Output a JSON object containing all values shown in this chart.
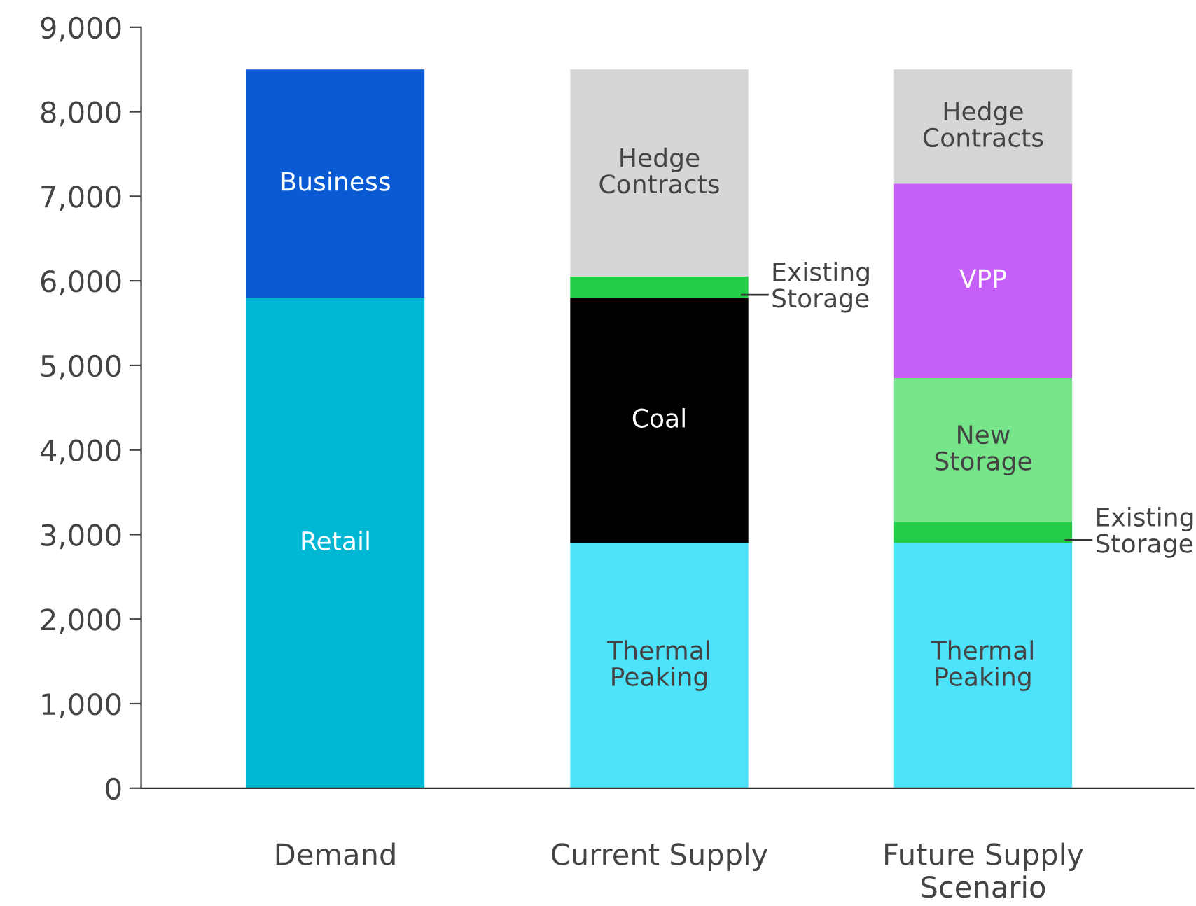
{
  "chart_data": {
    "type": "bar",
    "stacked": true,
    "categories": [
      "Demand",
      "Current Supply",
      "Future Supply\nScenario"
    ],
    "series": [
      {
        "name": "Retail",
        "color": "#00b8d4",
        "values": [
          5800,
          null,
          null
        ]
      },
      {
        "name": "Business",
        "color": "#0a5bd3",
        "values": [
          2700,
          null,
          null
        ]
      },
      {
        "name": "Thermal\nPeaking",
        "color": "#4de3fb",
        "values": [
          null,
          2900,
          2900
        ]
      },
      {
        "name": "Coal",
        "color": "#000000",
        "values": [
          null,
          2900,
          null
        ]
      },
      {
        "name": "Existing\nStorage",
        "color": "#22cc44",
        "values": [
          null,
          250,
          250
        ]
      },
      {
        "name": "New\nStorage",
        "color": "#77e68a",
        "values": [
          null,
          null,
          1700
        ]
      },
      {
        "name": "VPP",
        "color": "#c65ff8",
        "values": [
          null,
          null,
          2300
        ]
      },
      {
        "name": "Hedge\nContracts",
        "color": "#d5d6d8",
        "values": [
          null,
          2450,
          1350
        ]
      }
    ],
    "ylim": [
      0,
      9000
    ],
    "yticks": [
      {
        "value": 0,
        "label": "0"
      },
      {
        "value": 1000,
        "label": "1,000"
      },
      {
        "value": 2000,
        "label": "2,000"
      },
      {
        "value": 3000,
        "label": "3,000"
      },
      {
        "value": 4000,
        "label": "4,000"
      },
      {
        "value": 5000,
        "label": "5,000"
      },
      {
        "value": 6000,
        "label": "6,000"
      },
      {
        "value": 7000,
        "label": "7,000"
      },
      {
        "value": 8000,
        "label": "8,000"
      },
      {
        "value": 9000,
        "label": "9,000"
      }
    ],
    "grid": false,
    "legend": false
  }
}
